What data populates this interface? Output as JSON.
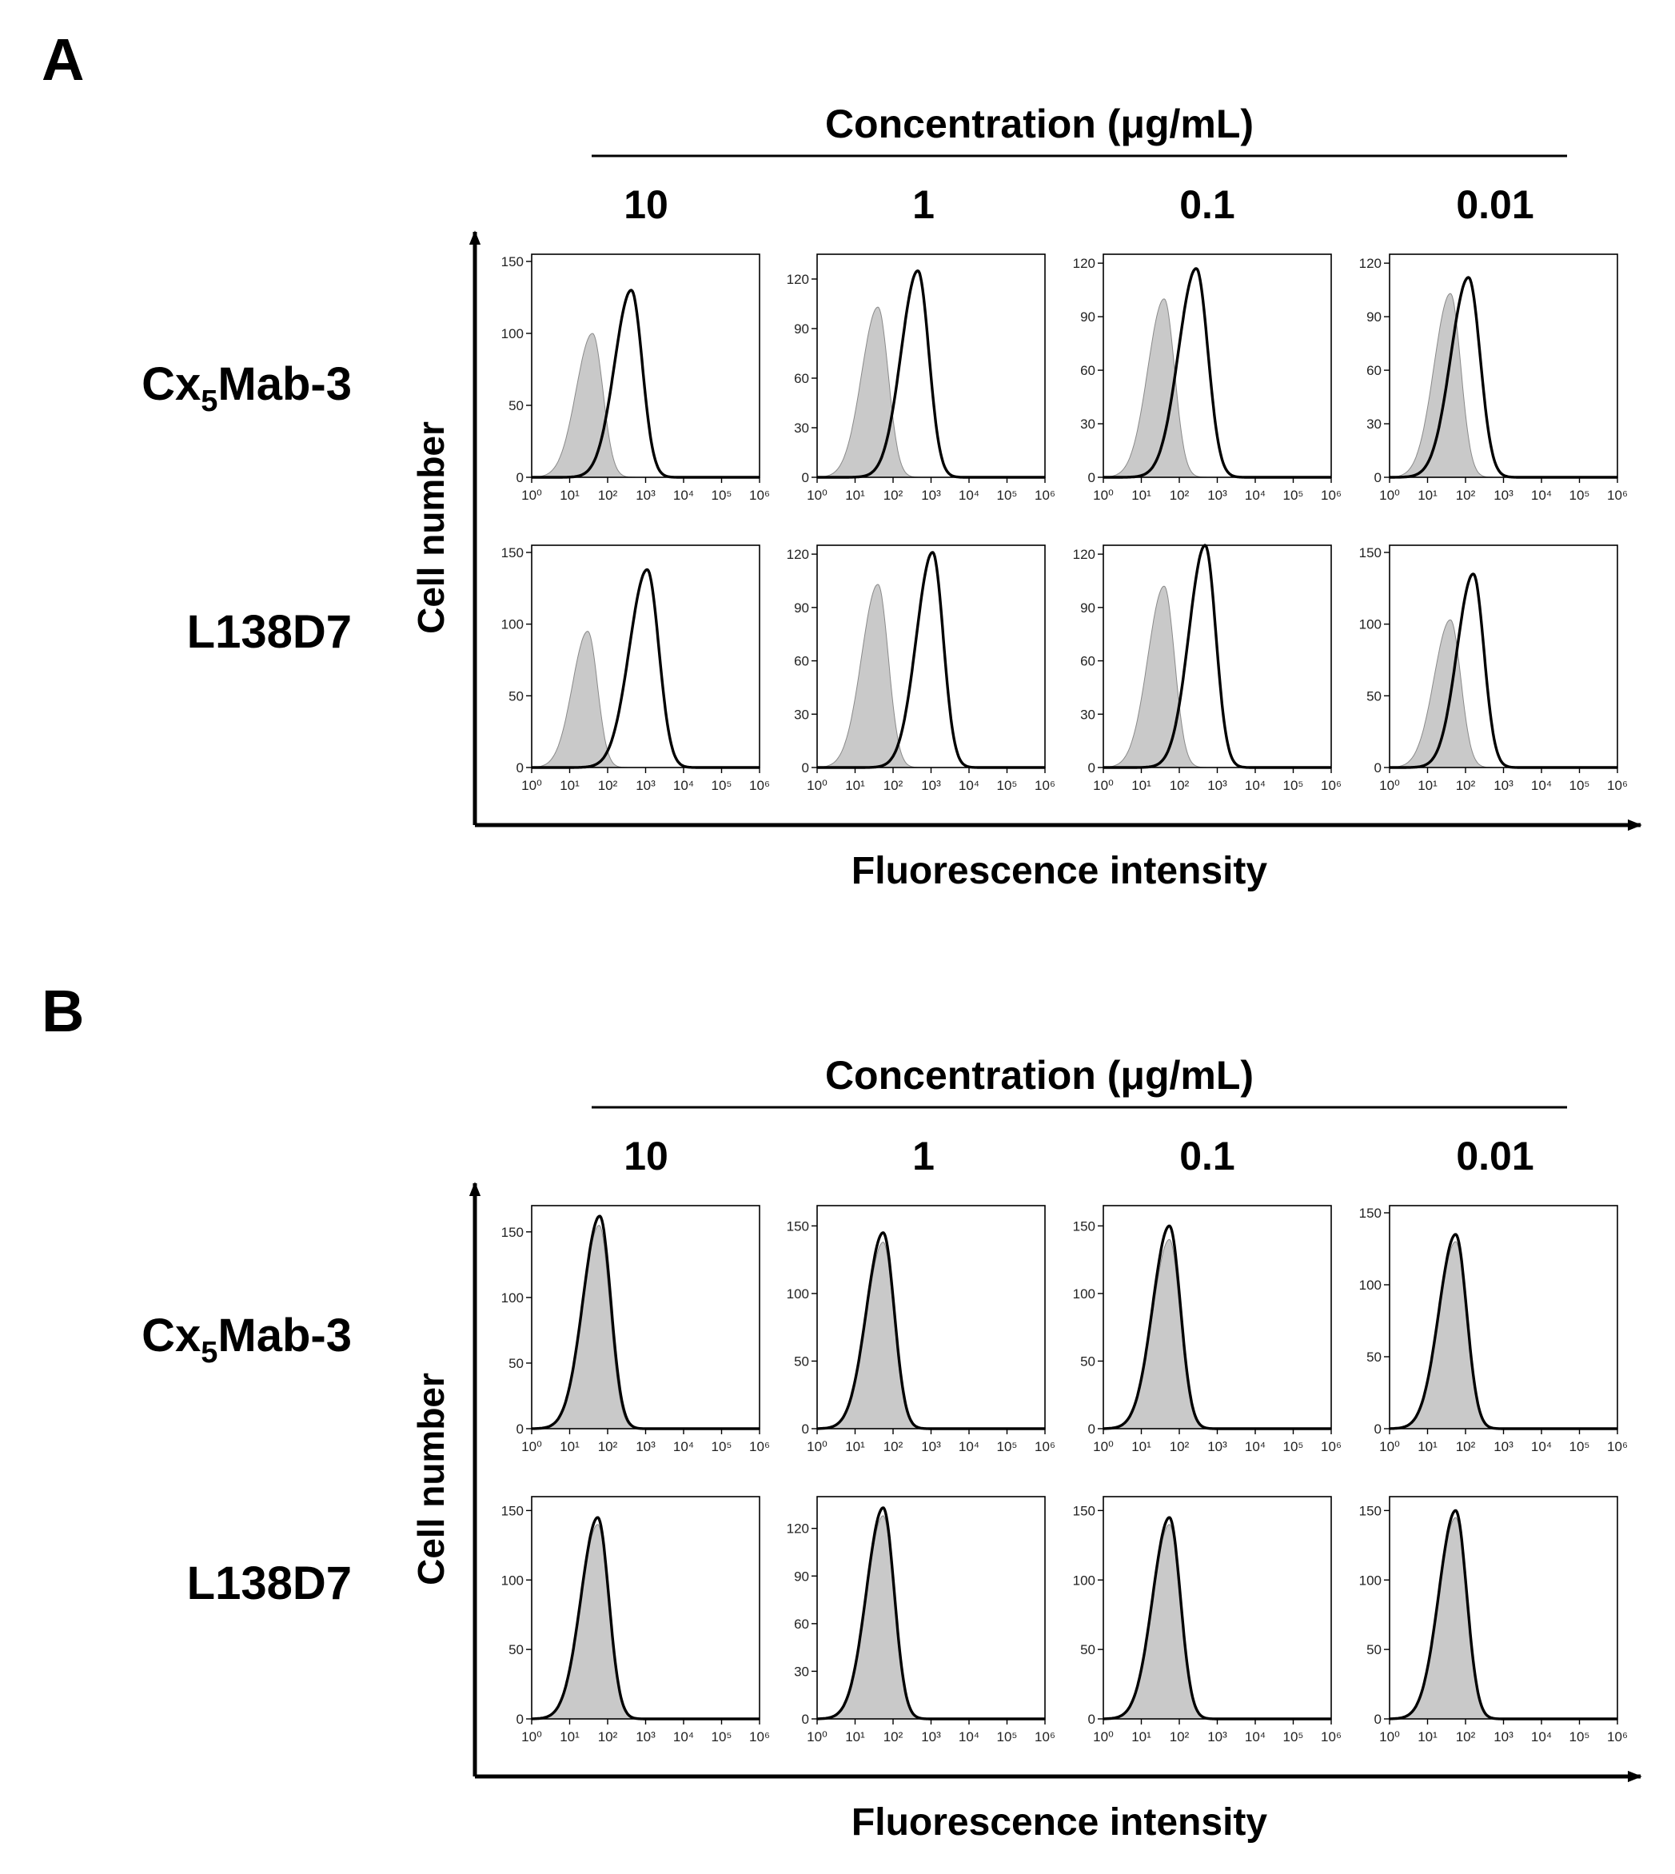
{
  "labels": {
    "concentration_title": "Concentration (μg/mL)",
    "y_axis": "Cell number",
    "x_axis": "Fluorescence intensity",
    "concentrations": [
      "10",
      "1",
      "0.1",
      "0.01"
    ],
    "antibody_1_prefix": "Cx",
    "antibody_1_sub": "5",
    "antibody_1_suffix": "Mab-3",
    "antibody_2": "L138D7"
  },
  "colors": {
    "control_fill": "#c9c9c9",
    "sample_line": "#000000"
  },
  "chart_data": {
    "type": "area",
    "x_scale": "log",
    "x_ticks": [
      "10⁰",
      "10¹",
      "10²",
      "10³",
      "10⁴",
      "10⁵",
      "10⁶"
    ],
    "xlim": [
      1,
      1000000
    ],
    "panels": [
      {
        "id": "A",
        "rows": [
          {
            "antibody": "Cx5Mab-3",
            "histograms": [
              {
                "concentration": "10",
                "y_ticks": [
                  0,
                  50,
                  100,
                  150
                ],
                "ylim": [
                  0,
                  155
                ],
                "control": {
                  "peak_x": 40,
                  "peak_y": 100,
                  "width_decades": 0.32
                },
                "sample": {
                  "peak_x": 420,
                  "peak_y": 130,
                  "width_decades": 0.34
                }
              },
              {
                "concentration": "1",
                "y_ticks": [
                  0,
                  30,
                  60,
                  90,
                  120
                ],
                "ylim": [
                  0,
                  135
                ],
                "control": {
                  "peak_x": 40,
                  "peak_y": 103,
                  "width_decades": 0.32
                },
                "sample": {
                  "peak_x": 450,
                  "peak_y": 125,
                  "width_decades": 0.34
                }
              },
              {
                "concentration": "0.1",
                "y_ticks": [
                  0,
                  30,
                  60,
                  90,
                  120
                ],
                "ylim": [
                  0,
                  125
                ],
                "control": {
                  "peak_x": 40,
                  "peak_y": 100,
                  "width_decades": 0.32
                },
                "sample": {
                  "peak_x": 280,
                  "peak_y": 117,
                  "width_decades": 0.36
                }
              },
              {
                "concentration": "0.01",
                "y_ticks": [
                  0,
                  30,
                  60,
                  90,
                  120
                ],
                "ylim": [
                  0,
                  125
                ],
                "control": {
                  "peak_x": 40,
                  "peak_y": 103,
                  "width_decades": 0.32
                },
                "sample": {
                  "peak_x": 120,
                  "peak_y": 112,
                  "width_decades": 0.36
                }
              }
            ]
          },
          {
            "antibody": "L138D7",
            "histograms": [
              {
                "concentration": "10",
                "y_ticks": [
                  0,
                  50,
                  100,
                  150
                ],
                "ylim": [
                  0,
                  155
                ],
                "control": {
                  "peak_x": 30,
                  "peak_y": 95,
                  "width_decades": 0.3
                },
                "sample": {
                  "peak_x": 1100,
                  "peak_y": 138,
                  "width_decades": 0.36
                }
              },
              {
                "concentration": "1",
                "y_ticks": [
                  0,
                  30,
                  60,
                  90,
                  120
                ],
                "ylim": [
                  0,
                  125
                ],
                "control": {
                  "peak_x": 40,
                  "peak_y": 103,
                  "width_decades": 0.32
                },
                "sample": {
                  "peak_x": 1100,
                  "peak_y": 121,
                  "width_decades": 0.33
                }
              },
              {
                "concentration": "0.1",
                "y_ticks": [
                  0,
                  30,
                  60,
                  90,
                  120
                ],
                "ylim": [
                  0,
                  125
                ],
                "control": {
                  "peak_x": 40,
                  "peak_y": 102,
                  "width_decades": 0.32
                },
                "sample": {
                  "peak_x": 480,
                  "peak_y": 125,
                  "width_decades": 0.33
                }
              },
              {
                "concentration": "0.01",
                "y_ticks": [
                  0,
                  50,
                  100,
                  150
                ],
                "ylim": [
                  0,
                  155
                ],
                "control": {
                  "peak_x": 40,
                  "peak_y": 103,
                  "width_decades": 0.32
                },
                "sample": {
                  "peak_x": 160,
                  "peak_y": 135,
                  "width_decades": 0.33
                }
              }
            ]
          }
        ]
      },
      {
        "id": "B",
        "rows": [
          {
            "antibody": "Cx5Mab-3",
            "histograms": [
              {
                "concentration": "10",
                "y_ticks": [
                  0,
                  50,
                  100,
                  150
                ],
                "ylim": [
                  0,
                  170
                ],
                "control": {
                  "peak_x": 60,
                  "peak_y": 155,
                  "width_decades": 0.33
                },
                "sample": {
                  "peak_x": 62,
                  "peak_y": 162,
                  "width_decades": 0.34
                }
              },
              {
                "concentration": "1",
                "y_ticks": [
                  0,
                  50,
                  100,
                  150
                ],
                "ylim": [
                  0,
                  165
                ],
                "control": {
                  "peak_x": 55,
                  "peak_y": 138,
                  "width_decades": 0.33
                },
                "sample": {
                  "peak_x": 55,
                  "peak_y": 145,
                  "width_decades": 0.34
                }
              },
              {
                "concentration": "0.1",
                "y_ticks": [
                  0,
                  50,
                  100,
                  150
                ],
                "ylim": [
                  0,
                  165
                ],
                "control": {
                  "peak_x": 55,
                  "peak_y": 140,
                  "width_decades": 0.33
                },
                "sample": {
                  "peak_x": 55,
                  "peak_y": 150,
                  "width_decades": 0.34
                }
              },
              {
                "concentration": "0.01",
                "y_ticks": [
                  0,
                  50,
                  100,
                  150
                ],
                "ylim": [
                  0,
                  155
                ],
                "control": {
                  "peak_x": 55,
                  "peak_y": 130,
                  "width_decades": 0.33
                },
                "sample": {
                  "peak_x": 55,
                  "peak_y": 135,
                  "width_decades": 0.34
                }
              }
            ]
          },
          {
            "antibody": "L138D7",
            "histograms": [
              {
                "concentration": "10",
                "y_ticks": [
                  0,
                  50,
                  100,
                  150
                ],
                "ylim": [
                  0,
                  160
                ],
                "control": {
                  "peak_x": 55,
                  "peak_y": 140,
                  "width_decades": 0.33
                },
                "sample": {
                  "peak_x": 55,
                  "peak_y": 145,
                  "width_decades": 0.34
                }
              },
              {
                "concentration": "1",
                "y_ticks": [
                  0,
                  30,
                  60,
                  90,
                  120
                ],
                "ylim": [
                  0,
                  140
                ],
                "control": {
                  "peak_x": 55,
                  "peak_y": 128,
                  "width_decades": 0.33
                },
                "sample": {
                  "peak_x": 55,
                  "peak_y": 133,
                  "width_decades": 0.34
                }
              },
              {
                "concentration": "0.1",
                "y_ticks": [
                  0,
                  50,
                  100,
                  150
                ],
                "ylim": [
                  0,
                  160
                ],
                "control": {
                  "peak_x": 55,
                  "peak_y": 140,
                  "width_decades": 0.33
                },
                "sample": {
                  "peak_x": 55,
                  "peak_y": 145,
                  "width_decades": 0.34
                }
              },
              {
                "concentration": "0.01",
                "y_ticks": [
                  0,
                  50,
                  100,
                  150
                ],
                "ylim": [
                  0,
                  160
                ],
                "control": {
                  "peak_x": 55,
                  "peak_y": 145,
                  "width_decades": 0.33
                },
                "sample": {
                  "peak_x": 55,
                  "peak_y": 150,
                  "width_decades": 0.34
                }
              }
            ]
          }
        ]
      }
    ]
  }
}
